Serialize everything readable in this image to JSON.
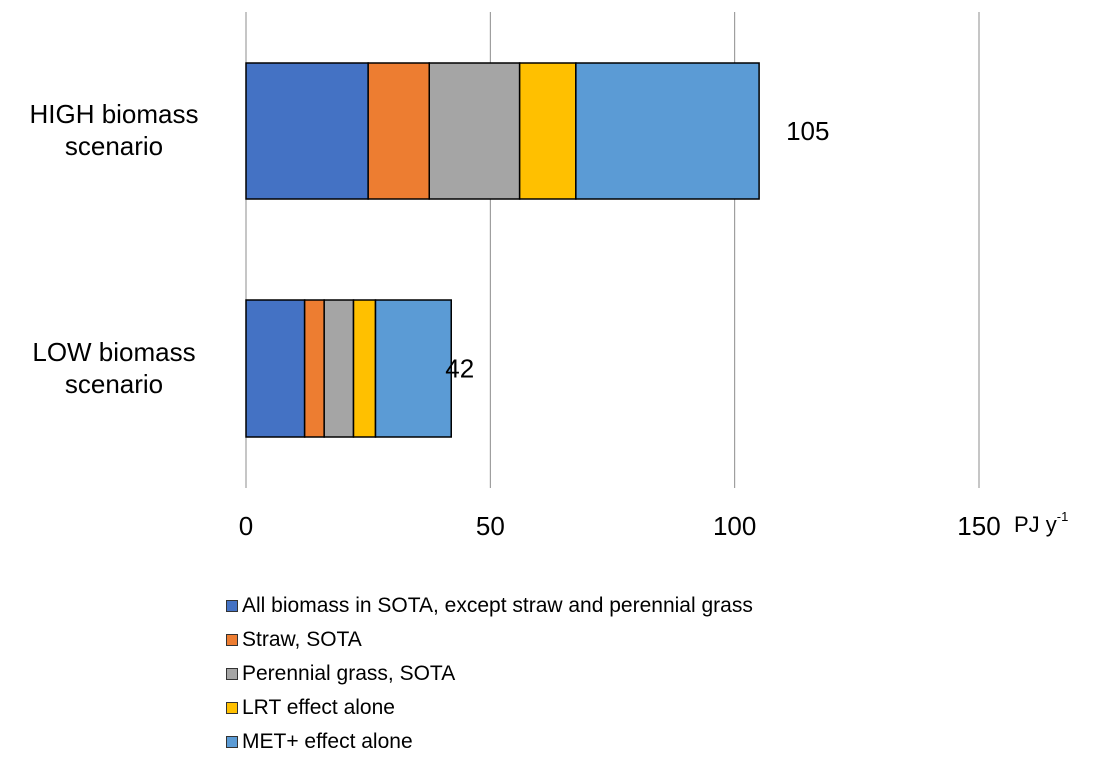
{
  "chart_data": {
    "type": "bar",
    "orientation": "horizontal",
    "stacked": true,
    "categories": [
      "HIGH biomass\nscenario",
      "LOW biomass\nscenario"
    ],
    "series": [
      {
        "name": "All biomass in SOTA, except straw and perennial grass",
        "color": "#4472C4",
        "values": [
          25,
          12
        ]
      },
      {
        "name": "Straw, SOTA",
        "color": "#ED7D31",
        "values": [
          12.5,
          4
        ]
      },
      {
        "name": "Perennial grass, SOTA",
        "color": "#A5A5A5",
        "values": [
          18.5,
          6
        ]
      },
      {
        "name": "LRT effect alone",
        "color": "#FFC000",
        "values": [
          11.5,
          4.5
        ]
      },
      {
        "name": "MET+ effect alone",
        "color": "#5B9BD5",
        "values": [
          37.5,
          15.5
        ]
      }
    ],
    "totals": [
      "105",
      "42"
    ],
    "xlim": [
      0,
      150
    ],
    "xticks": [
      "0",
      "50",
      "100",
      "150"
    ],
    "unit": {
      "text": "PJ y",
      "superscript": "-1"
    },
    "grid": "vertical",
    "legend_position": "bottom"
  }
}
